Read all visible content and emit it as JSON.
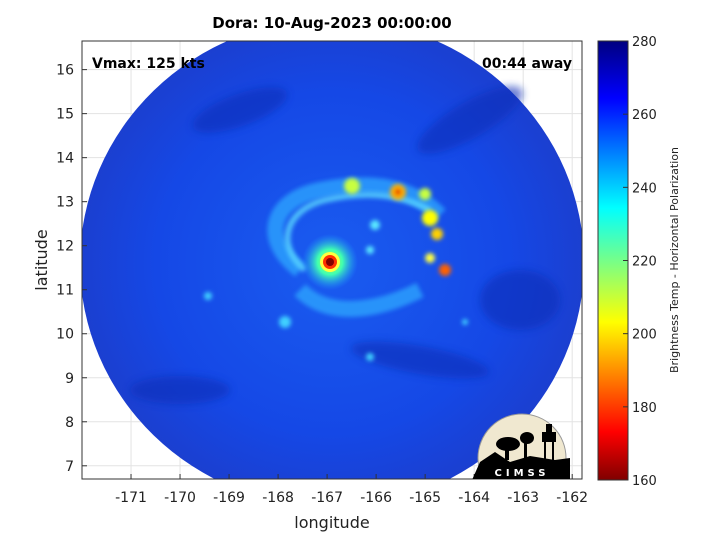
{
  "chart_data": {
    "type": "heatmap",
    "title": "Dora: 10-Aug-2023 00:00:00",
    "xlabel": "longitude",
    "ylabel": "latitude",
    "xlim": [
      -172,
      -161.8
    ],
    "ylim": [
      6.7,
      16.65
    ],
    "x_ticks": [
      "-171",
      "-170",
      "-169",
      "-168",
      "-167",
      "-166",
      "-165",
      "-164",
      "-163",
      "-162"
    ],
    "x_tick_values": [
      -171,
      -170,
      -169,
      -168,
      -167,
      -166,
      -165,
      -164,
      -163,
      -162
    ],
    "y_ticks": [
      "7",
      "8",
      "9",
      "10",
      "11",
      "12",
      "13",
      "14",
      "15",
      "16"
    ],
    "y_tick_values": [
      7,
      8,
      9,
      10,
      11,
      12,
      13,
      14,
      15,
      16
    ],
    "grid": true,
    "annotations": {
      "vmax": "Vmax: 125 kts",
      "time_away": "00:44 away"
    },
    "storm_center": {
      "lon": -166.9,
      "lat": 11.6
    },
    "colorbar": {
      "label": "Brightness Temp - Horizontal Polarization",
      "range": [
        160,
        280
      ],
      "ticks": [
        "160",
        "180",
        "200",
        "220",
        "240",
        "260",
        "280"
      ],
      "tick_values": [
        160,
        180,
        200,
        220,
        240,
        260,
        280
      ],
      "colormap": "jet"
    },
    "logo_text": "CIMSS"
  }
}
